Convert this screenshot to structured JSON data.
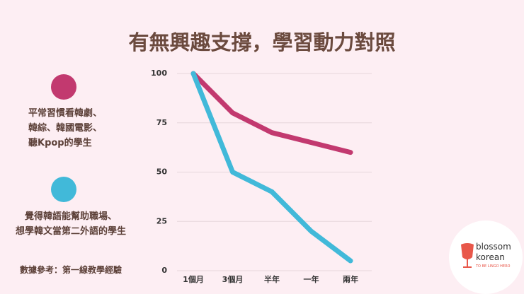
{
  "chart_data": {
    "type": "line",
    "title": "有無興趣支撐，學習動力對照",
    "categories": [
      "1個月",
      "3個月",
      "半年",
      "一年",
      "兩年"
    ],
    "series": [
      {
        "name": "平常習慣看韓劇、\n韓綜、韓國電影、\n聽Kpop的學生",
        "color": "#c2396f",
        "values": [
          100,
          80,
          70,
          65,
          60
        ]
      },
      {
        "name": "覺得韓語能幫助職場、\n想學韓文當第二外語的學生",
        "color": "#41b9d9",
        "values": [
          100,
          50,
          40,
          20,
          5
        ]
      }
    ],
    "ylim": [
      0,
      100
    ],
    "yticks": [
      0,
      25,
      50,
      75,
      100
    ],
    "grid": true,
    "note": "數據參考：第一線教學經驗"
  },
  "logo": {
    "name": "blossom\nkorean",
    "tagline": "TO BE LINGO HERO"
  }
}
